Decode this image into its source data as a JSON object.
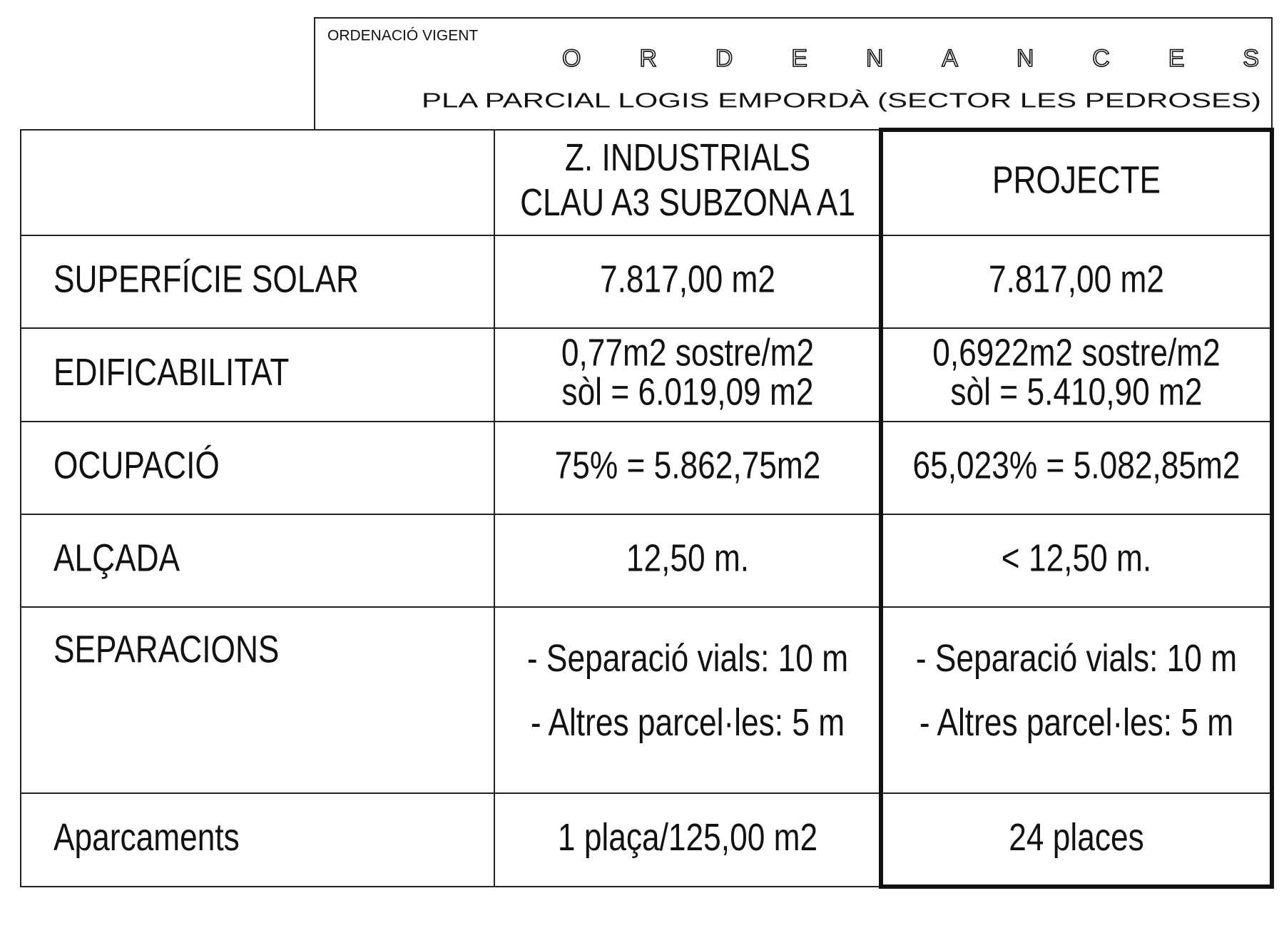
{
  "header": {
    "label": "ORDENACIÓ VIGENT",
    "title": "ORDENANCES",
    "subtitle": "PLA  PARCIAL LOGIS EMPORDÀ (SECTOR LES PEDROSES)"
  },
  "table": {
    "columns": [
      [
        "Z. INDUSTRIALS",
        "CLAU A3 SUBZONA A1"
      ],
      [
        "PROJECTE"
      ]
    ],
    "rows": [
      {
        "label": "SUPERFÍCIE SOLAR",
        "values": [
          [
            "7.817,00 m2"
          ],
          [
            "7.817,00 m2"
          ]
        ]
      },
      {
        "label": "EDIFICABILITAT",
        "values": [
          [
            "0,77m2 sostre/m2",
            "sòl = 6.019,09 m2"
          ],
          [
            "0,6922m2 sostre/m2",
            "sòl = 5.410,90 m2"
          ]
        ]
      },
      {
        "label": "OCUPACIÓ",
        "values": [
          [
            "75% = 5.862,75m2"
          ],
          [
            "65,023% = 5.082,85m2"
          ]
        ]
      },
      {
        "label": "ALÇADA",
        "values": [
          [
            "12,50 m."
          ],
          [
            "< 12,50 m."
          ]
        ]
      },
      {
        "label": "SEPARACIONS",
        "values": [
          [
            "- Separació vials: 10 m",
            "- Altres parcel·les: 5 m"
          ],
          [
            "- Separació vials: 10 m",
            "- Altres parcel·les: 5 m"
          ]
        ]
      },
      {
        "label": "Aparcaments",
        "values": [
          [
            "1 plaça/125,00 m2"
          ],
          [
            "24 places"
          ]
        ]
      }
    ]
  }
}
